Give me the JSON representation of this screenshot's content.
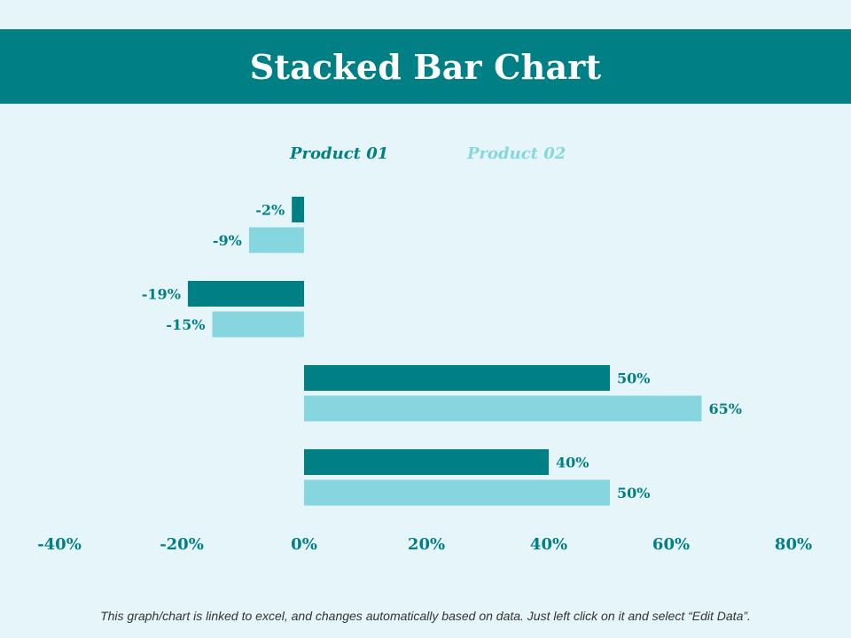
{
  "slide": {
    "title": "Stacked Bar Chart",
    "footnote": "This graph/chart is linked to excel, and changes automatically based on data. Just left click on it and select “Edit Data”."
  },
  "colors": {
    "background": "#e6f5f9",
    "title_bar": "#007f84",
    "title_text": "#ffffff",
    "product01": "#007f84",
    "product02": "#86d6df",
    "tick_text": "#007f84",
    "data_label": "#007f84"
  },
  "chart_data": {
    "type": "bar",
    "orientation": "horizontal",
    "title": "",
    "xlabel": "",
    "ylabel": "",
    "xlim": [
      -40,
      80
    ],
    "x_ticks": [
      -40,
      -20,
      0,
      20,
      40,
      60,
      80
    ],
    "x_tick_labels": [
      "-40%",
      "-20%",
      "0%",
      "20%",
      "40%",
      "60%",
      "80%"
    ],
    "grid": false,
    "legend": {
      "position": "top",
      "entries": [
        "Product 01",
        "Product 02"
      ]
    },
    "categories": [
      "",
      "",
      "",
      ""
    ],
    "series": [
      {
        "name": "Product 01",
        "values": [
          -2,
          -19,
          50,
          40
        ],
        "labels": [
          "-2%",
          "-19%",
          "50%",
          "40%"
        ]
      },
      {
        "name": "Product 02",
        "values": [
          -9,
          -15,
          65,
          50
        ],
        "labels": [
          "-9%",
          "-15%",
          "65%",
          "50%"
        ]
      }
    ]
  }
}
